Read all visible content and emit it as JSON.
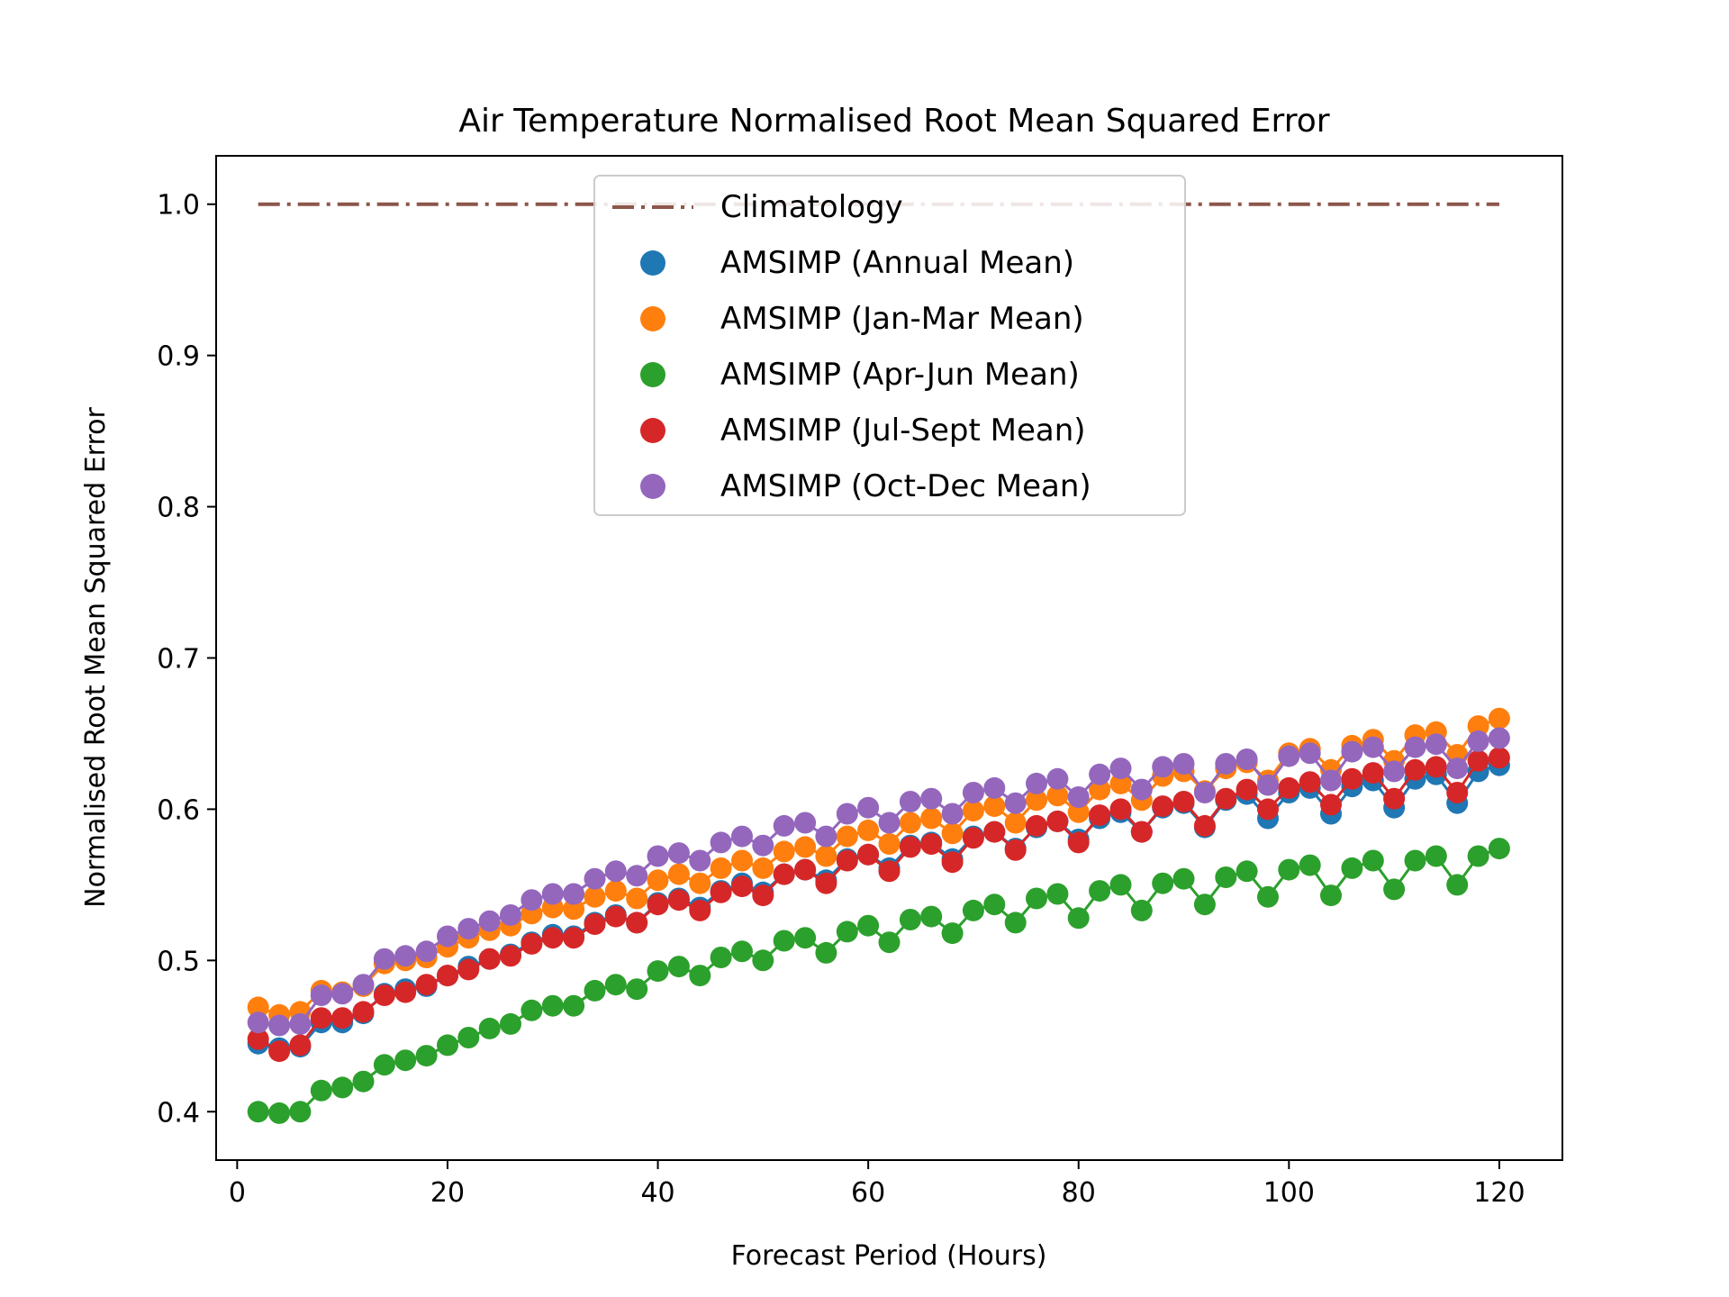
{
  "chart_data": {
    "type": "scatter",
    "title": "Air Temperature Normalised Root Mean Squared Error",
    "xlabel": "Forecast Period (Hours)",
    "ylabel": "Normalised Root Mean Squared Error",
    "xlim": [
      -2,
      126
    ],
    "ylim": [
      0.368,
      1.032
    ],
    "x_ticks": [
      0,
      20,
      40,
      60,
      80,
      100,
      120
    ],
    "y_ticks": [
      0.4,
      0.5,
      0.6,
      0.7,
      0.8,
      0.9,
      1.0
    ],
    "x_tick_labels": [
      "0",
      "20",
      "40",
      "60",
      "80",
      "100",
      "120"
    ],
    "y_tick_labels": [
      "0.4",
      "0.5",
      "0.6",
      "0.7",
      "0.8",
      "0.9",
      "1.0"
    ],
    "grid": false,
    "legend_position": "upper center",
    "x": [
      2,
      4,
      6,
      8,
      10,
      12,
      14,
      16,
      18,
      20,
      22,
      24,
      26,
      28,
      30,
      32,
      34,
      36,
      38,
      40,
      42,
      44,
      46,
      48,
      50,
      52,
      54,
      56,
      58,
      60,
      62,
      64,
      66,
      68,
      70,
      72,
      74,
      76,
      78,
      80,
      82,
      84,
      86,
      88,
      90,
      92,
      94,
      96,
      98,
      100,
      102,
      104,
      106,
      108,
      110,
      112,
      114,
      116,
      118,
      120
    ],
    "reference_line": {
      "name": "Climatology",
      "value": 1.0,
      "x_range": [
        2,
        120
      ],
      "color": "#8c564b",
      "style": "dash-dot"
    },
    "series": [
      {
        "name": "AMSIMP (Annual Mean)",
        "color": "#1f77b4",
        "values": [
          0.445,
          0.442,
          0.443,
          0.459,
          0.459,
          0.465,
          0.478,
          0.481,
          0.483,
          0.49,
          0.496,
          0.501,
          0.504,
          0.512,
          0.517,
          0.516,
          0.525,
          0.53,
          0.525,
          0.538,
          0.541,
          0.535,
          0.546,
          0.551,
          0.545,
          0.557,
          0.56,
          0.553,
          0.567,
          0.57,
          0.561,
          0.576,
          0.578,
          0.567,
          0.582,
          0.585,
          0.574,
          0.588,
          0.592,
          0.58,
          0.594,
          0.598,
          0.585,
          0.601,
          0.604,
          0.588,
          0.606,
          0.61,
          0.594,
          0.611,
          0.614,
          0.597,
          0.615,
          0.619,
          0.601,
          0.62,
          0.623,
          0.604,
          0.625,
          0.629
        ]
      },
      {
        "name": "AMSIMP (Jan-Mar Mean)",
        "color": "#ff7f0e",
        "values": [
          0.469,
          0.464,
          0.466,
          0.48,
          0.479,
          0.483,
          0.498,
          0.5,
          0.502,
          0.509,
          0.515,
          0.52,
          0.523,
          0.531,
          0.535,
          0.534,
          0.542,
          0.546,
          0.541,
          0.553,
          0.557,
          0.551,
          0.561,
          0.566,
          0.561,
          0.572,
          0.575,
          0.569,
          0.582,
          0.586,
          0.577,
          0.591,
          0.594,
          0.584,
          0.599,
          0.602,
          0.591,
          0.606,
          0.609,
          0.598,
          0.613,
          0.617,
          0.606,
          0.622,
          0.625,
          0.612,
          0.627,
          0.631,
          0.619,
          0.637,
          0.64,
          0.626,
          0.642,
          0.646,
          0.632,
          0.649,
          0.651,
          0.636,
          0.655,
          0.66
        ]
      },
      {
        "name": "AMSIMP (Apr-Jun Mean)",
        "color": "#2ca02c",
        "values": [
          0.4,
          0.399,
          0.4,
          0.414,
          0.416,
          0.42,
          0.431,
          0.434,
          0.437,
          0.444,
          0.449,
          0.455,
          0.458,
          0.467,
          0.47,
          0.47,
          0.48,
          0.484,
          0.481,
          0.493,
          0.496,
          0.49,
          0.502,
          0.506,
          0.5,
          0.513,
          0.515,
          0.505,
          0.519,
          0.523,
          0.512,
          0.527,
          0.529,
          0.518,
          0.533,
          0.537,
          0.525,
          0.541,
          0.544,
          0.528,
          0.546,
          0.55,
          0.533,
          0.551,
          0.554,
          0.537,
          0.555,
          0.559,
          0.542,
          0.56,
          0.563,
          0.543,
          0.561,
          0.566,
          0.547,
          0.566,
          0.569,
          0.55,
          0.569,
          0.574
        ]
      },
      {
        "name": "AMSIMP (Jul-Sept Mean)",
        "color": "#d62728",
        "values": [
          0.448,
          0.44,
          0.444,
          0.462,
          0.462,
          0.466,
          0.477,
          0.479,
          0.484,
          0.49,
          0.494,
          0.501,
          0.503,
          0.511,
          0.515,
          0.515,
          0.524,
          0.529,
          0.525,
          0.537,
          0.54,
          0.533,
          0.545,
          0.549,
          0.543,
          0.557,
          0.56,
          0.551,
          0.566,
          0.57,
          0.559,
          0.575,
          0.577,
          0.565,
          0.581,
          0.585,
          0.573,
          0.589,
          0.592,
          0.578,
          0.596,
          0.6,
          0.585,
          0.602,
          0.605,
          0.589,
          0.607,
          0.613,
          0.6,
          0.614,
          0.618,
          0.603,
          0.62,
          0.624,
          0.607,
          0.626,
          0.628,
          0.611,
          0.632,
          0.634
        ]
      },
      {
        "name": "AMSIMP (Oct-Dec Mean)",
        "color": "#9467bd",
        "values": [
          0.459,
          0.457,
          0.458,
          0.477,
          0.478,
          0.484,
          0.501,
          0.503,
          0.506,
          0.516,
          0.521,
          0.526,
          0.53,
          0.54,
          0.544,
          0.544,
          0.554,
          0.559,
          0.556,
          0.569,
          0.571,
          0.566,
          0.578,
          0.582,
          0.576,
          0.589,
          0.591,
          0.582,
          0.597,
          0.601,
          0.591,
          0.605,
          0.607,
          0.597,
          0.611,
          0.614,
          0.604,
          0.617,
          0.62,
          0.608,
          0.623,
          0.627,
          0.613,
          0.628,
          0.63,
          0.611,
          0.63,
          0.633,
          0.616,
          0.635,
          0.637,
          0.619,
          0.638,
          0.641,
          0.625,
          0.641,
          0.643,
          0.627,
          0.645,
          0.647
        ]
      }
    ]
  }
}
